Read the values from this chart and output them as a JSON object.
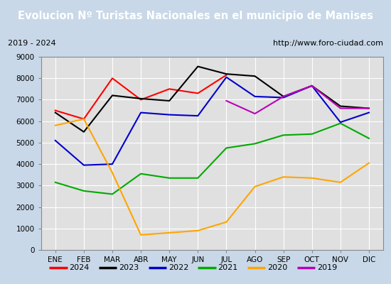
{
  "title": "Evolucion Nº Turistas Nacionales en el municipio de Manises",
  "subtitle_left": "2019 - 2024",
  "subtitle_right": "http://www.foro-ciudad.com",
  "months": [
    "ENE",
    "FEB",
    "MAR",
    "ABR",
    "MAY",
    "JUN",
    "JUL",
    "AGO",
    "SEP",
    "OCT",
    "NOV",
    "DIC"
  ],
  "series_data": {
    "2024": [
      6500,
      6100,
      8000,
      7000,
      7500,
      7300,
      8150,
      null,
      null,
      null,
      null,
      null
    ],
    "2023": [
      6400,
      5500,
      7200,
      7050,
      6950,
      8550,
      8200,
      8100,
      7150,
      7650,
      6700,
      6600
    ],
    "2022": [
      5100,
      3950,
      4000,
      6400,
      6300,
      6250,
      8050,
      7150,
      7100,
      7650,
      5950,
      6400
    ],
    "2021": [
      3150,
      2750,
      2600,
      3550,
      3350,
      3350,
      4750,
      4950,
      5350,
      5400,
      5900,
      5200
    ],
    "2020": [
      5800,
      6100,
      3600,
      700,
      800,
      900,
      1300,
      2950,
      3400,
      3350,
      3150,
      4050
    ],
    "2019": [
      null,
      null,
      null,
      null,
      null,
      null,
      6950,
      6350,
      7150,
      7650,
      6600,
      6600
    ]
  },
  "series_colors": {
    "2024": "#ff0000",
    "2023": "#000000",
    "2022": "#0000cc",
    "2021": "#00aa00",
    "2020": "#ffa500",
    "2019": "#bb00bb"
  },
  "ylim": [
    0,
    9000
  ],
  "yticks": [
    0,
    1000,
    2000,
    3000,
    4000,
    5000,
    6000,
    7000,
    8000,
    9000
  ],
  "title_bg_color": "#4a86c8",
  "title_text_color": "#ffffff",
  "subtitle_bg_color": "#e8e8e8",
  "plot_bg_color": "#e0e0e0",
  "grid_color": "#ffffff",
  "legend_order": [
    "2024",
    "2023",
    "2022",
    "2021",
    "2020",
    "2019"
  ],
  "outer_bg_color": "#c8d8e8"
}
